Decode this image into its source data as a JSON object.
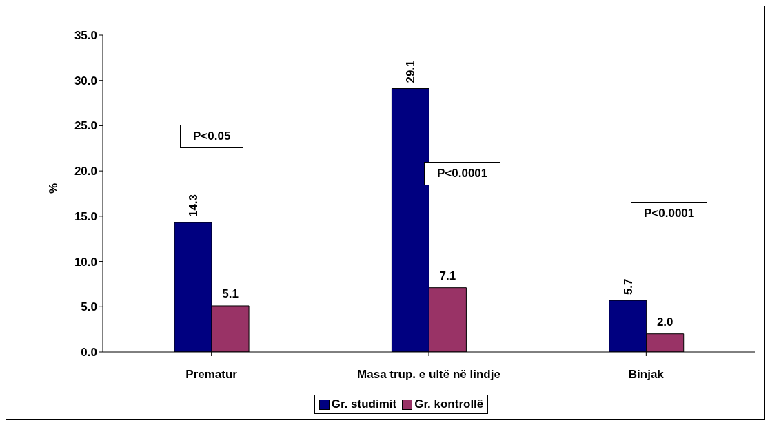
{
  "chart_data": {
    "type": "bar",
    "ylabel": "%",
    "categories": [
      "Prematur",
      "Masa trup. e ultë në lindje",
      "Binjak"
    ],
    "series": [
      {
        "name": "Gr. studimit",
        "color": "#000080",
        "values": [
          14.3,
          29.1,
          5.7
        ],
        "value_labels": [
          "14.3",
          "29.1",
          "5.7"
        ]
      },
      {
        "name": "Gr. kontrollë",
        "color": "#993366",
        "values": [
          5.1,
          7.1,
          2.0
        ],
        "value_labels": [
          "5.1",
          "7.1",
          "2.0"
        ]
      }
    ],
    "ylim": [
      0,
      35
    ],
    "yticks": [
      {
        "value": 0,
        "label": "0.0"
      },
      {
        "value": 5,
        "label": "5.0"
      },
      {
        "value": 10,
        "label": "10.0"
      },
      {
        "value": 15,
        "label": "15.0"
      },
      {
        "value": 20,
        "label": "20.0"
      },
      {
        "value": 25,
        "label": "25.0"
      },
      {
        "value": 30,
        "label": "30.0"
      },
      {
        "value": 35,
        "label": "35.0"
      }
    ],
    "annotations": [
      "P<0.05",
      "P<0.0001",
      "P<0.0001"
    ],
    "grid": false,
    "legend": "bottom"
  }
}
